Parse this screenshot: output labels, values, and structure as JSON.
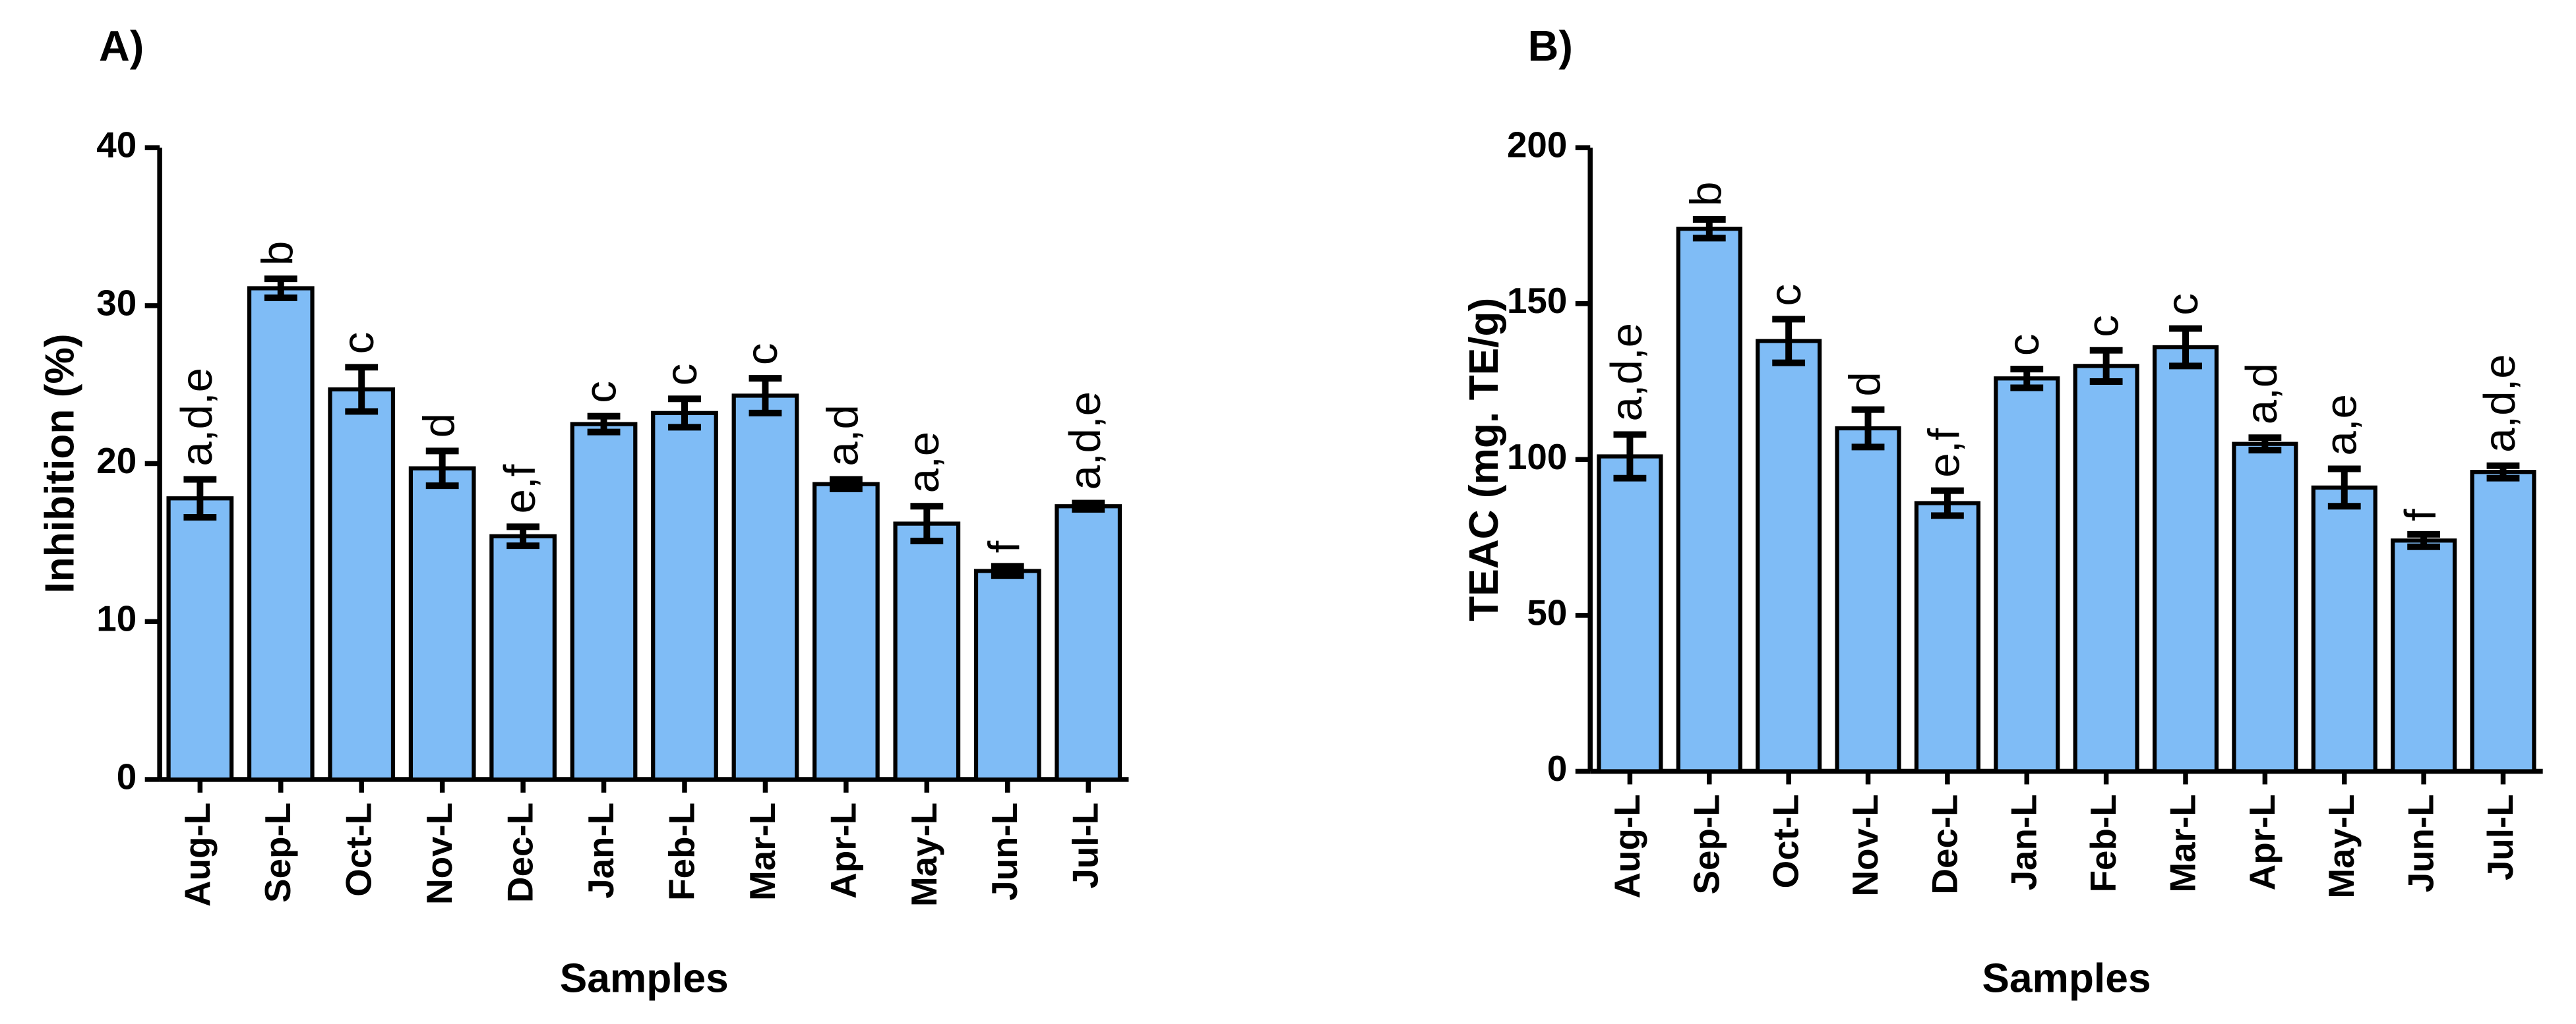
{
  "chart_data": [
    {
      "type": "bar",
      "title": "A)",
      "y_label": "Inhibition (%)",
      "x_label": "Samples",
      "categories": [
        "Aug-L",
        "Sep-L",
        "Oct-L",
        "Nov-L",
        "Dec-L",
        "Jan-L",
        "Feb-L",
        "Mar-L",
        "Apr-L",
        "May-L",
        "Jun-L",
        "Jul-L"
      ],
      "values": [
        17.8,
        31.1,
        24.7,
        19.7,
        15.4,
        22.5,
        23.2,
        24.3,
        18.7,
        16.2,
        13.2,
        17.3
      ],
      "errors": [
        1.2,
        0.6,
        1.4,
        1.1,
        0.6,
        0.5,
        0.9,
        1.1,
        0.3,
        1.1,
        0.3,
        0.2
      ],
      "annotations": [
        "a,d,e",
        "b",
        "c",
        "d",
        "e,f",
        "c",
        "c",
        "c",
        "a,d",
        "a,e",
        "f",
        "a,d,e"
      ],
      "color": "#7fbcf6",
      "ylim": [
        0,
        40
      ],
      "yticks": [
        0,
        10,
        20,
        30,
        40
      ]
    },
    {
      "type": "bar",
      "title": "B)",
      "y_label": "TEAC (mg. TE/g)",
      "x_label": "Samples",
      "categories": [
        "Aug-L",
        "Sep-L",
        "Oct-L",
        "Nov-L",
        "Dec-L",
        "Jan-L",
        "Feb-L",
        "Mar-L",
        "Apr-L",
        "May-L",
        "Jun-L",
        "Jul-L"
      ],
      "values": [
        101,
        174,
        138,
        110,
        86,
        126,
        130,
        136,
        105,
        91,
        74,
        96
      ],
      "errors": [
        7,
        3,
        7,
        6,
        4,
        3,
        5,
        6,
        2,
        6,
        2,
        2
      ],
      "annotations": [
        "a,d,e",
        "b",
        "c",
        "d",
        "e,f",
        "c",
        "c",
        "c",
        "a,d",
        "a,e",
        "f",
        "a,d,e"
      ],
      "color": "#7fbcf6",
      "ylim": [
        0,
        200
      ],
      "yticks": [
        0,
        50,
        100,
        150,
        200
      ]
    }
  ]
}
